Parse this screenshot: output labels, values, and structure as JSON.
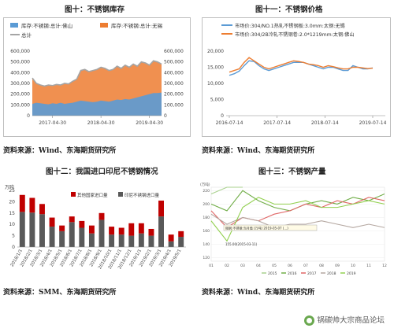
{
  "titles": {
    "inventory": "图十：不锈钢库存",
    "price": "图十一：不锈钢价格",
    "imports": "图十二：我国进口印尼不锈钢情况",
    "output": "图十三：不锈钢产量"
  },
  "sources": {
    "inventory": "资料来源：Wind、东海期货研究所",
    "price": "资料来源：Wind、东海期货研究所",
    "imports": "资料来源：SMM、东海期货研究所",
    "output": "资料来源：Wind、东海期货研究所"
  },
  "watermark": "锅碳帅大宗商品论坛",
  "colors": {
    "foshan": "#5b9bd5",
    "wuxi": "#ed7d31",
    "total": "#a5a5a5",
    "price_304_hot": "#5b9bd5",
    "price_304_cold": "#ed7d31",
    "other_imports": "#c00000",
    "indonesia_imports": "#595959",
    "y2015": "#a9d18e",
    "y2016": "#70ad47",
    "y2017": "#e06666",
    "y2018": "#b4a7a0",
    "y2019": "#92d050"
  },
  "chart_data": [
    {
      "id": "inventory",
      "type": "area",
      "legend": [
        "库存:不锈钢:总计:佛山",
        "库存:不锈钢:总计:无锡",
        "总计"
      ],
      "x_ticks": [
        "2017-04-30",
        "2018-04-30",
        "2019-04-30"
      ],
      "y_ticks": [
        "0",
        "100,000",
        "200,000",
        "300,000",
        "400,000",
        "500,000",
        "600,000"
      ],
      "ylim": [
        0,
        600000
      ],
      "x_range": [
        "2016-09",
        "2019-06"
      ],
      "total": [
        350000,
        300000,
        285000,
        275000,
        285000,
        280000,
        290000,
        285000,
        300000,
        295000,
        320000,
        340000,
        420000,
        430000,
        410000,
        420000,
        430000,
        450000,
        440000,
        420000,
        430000,
        460000,
        440000,
        470000,
        450000,
        480000,
        460000,
        500000,
        490000,
        470000,
        510000,
        500000,
        480000
      ],
      "foshan": [
        110000,
        120000,
        115000,
        110000,
        105000,
        115000,
        110000,
        120000,
        110000,
        115000,
        120000,
        130000,
        140000,
        135000,
        130000,
        125000,
        130000,
        140000,
        135000,
        130000,
        140000,
        150000,
        145000,
        155000,
        150000,
        160000,
        170000,
        180000,
        190000,
        200000,
        210000,
        210000,
        215000
      ]
    },
    {
      "id": "price",
      "type": "line",
      "legend": [
        "市场价:304/NO.1热轧不锈钢板:3.0mm:太钢:无锡",
        "市场价:304/2B冷轧不锈钢卷:2.0*1219mm:太钢:佛山"
      ],
      "x_ticks": [
        "2016-07-14",
        "2017-07-14",
        "2018-07-14",
        "2019-07-14"
      ],
      "y_ticks": [
        "0",
        "5,000",
        "10,000",
        "15,000",
        "20,000"
      ],
      "ylim": [
        0,
        20000
      ],
      "series": [
        {
          "name": "市场价:304/NO.1热轧不锈钢板:3.0mm:太钢:无锡",
          "values": [
            12500,
            13000,
            13800,
            15500,
            17000,
            16800,
            15500,
            14500,
            14000,
            14500,
            15000,
            15500,
            16000,
            16500,
            16500,
            16500,
            16000,
            15500,
            15000,
            14500,
            15000,
            15000,
            14500,
            14000,
            14000,
            15500,
            15000,
            14500,
            14500,
            14800
          ]
        },
        {
          "name": "市场价:304/2B冷轧不锈钢卷:2.0*1219mm:太钢:佛山",
          "values": [
            13500,
            14000,
            14500,
            16500,
            18000,
            17000,
            16000,
            15000,
            14500,
            15000,
            15500,
            16000,
            16500,
            17000,
            16800,
            16500,
            16000,
            15800,
            15500,
            15000,
            15500,
            15200,
            14800,
            14500,
            14500,
            15000,
            15000,
            14800,
            14600,
            14700
          ]
        }
      ]
    },
    {
      "id": "imports",
      "type": "bar",
      "y_unit": "万吨",
      "legend": [
        "其他国家进口量",
        "印尼不锈钢进口量"
      ],
      "categories": [
        "2018/1/1",
        "2018/2/1",
        "2018/3/1",
        "2018/4/1",
        "2018/5/1",
        "2018/6/1",
        "2018/7/1",
        "2018/8/1",
        "2018/9/1",
        "2018/10/1",
        "2018/11/1",
        "2018/12/1",
        "2019/1/1",
        "2019/2/1",
        "2019/3/1",
        "2019/4/1",
        "2019/5/1"
      ],
      "x_tick_labels": [
        "2018/1/1",
        "2018/2/1",
        "2018/3/1",
        "2018/4/1",
        "2018/5/1",
        "2018/6/1",
        "2018/7/1",
        "2018/8/1",
        "2018/9/1",
        "2018/10/1",
        "2018/11/1",
        "2018/12/1",
        "2019/1/1",
        "2019/2/1",
        "2019/3/1",
        "2019/4/1",
        "2019/5/1"
      ],
      "y_ticks": [
        "0",
        "5",
        "10",
        "15",
        "20",
        "25"
      ],
      "ylim": [
        0,
        25
      ],
      "series": [
        {
          "name": "印尼不锈钢进口量",
          "values": [
            15.5,
            15.2,
            14.5,
            9.0,
            7.0,
            11.0,
            8.5,
            6.0,
            12.0,
            5.5,
            5.5,
            5.0,
            6.0,
            5.0,
            13.5,
            2.5,
            4.5
          ]
        },
        {
          "name": "其他国家进口量",
          "values": [
            7.5,
            6.5,
            4.5,
            4.0,
            2.5,
            2.5,
            3.0,
            3.5,
            3.0,
            3.5,
            3.0,
            5.5,
            4.5,
            3.0,
            7.0,
            3.0,
            2.5
          ]
        }
      ]
    },
    {
      "id": "output",
      "type": "line",
      "y_unit": "(万吨)",
      "x_ticks": [
        "01",
        "02",
        "03",
        "04",
        "05",
        "06",
        "07",
        "08",
        "09",
        "10",
        "11",
        "12"
      ],
      "y_ticks": [
        "120",
        "140",
        "160",
        "180",
        "200",
        "220"
      ],
      "ylim": [
        115,
        225
      ],
      "legend": [
        "2015",
        "2016",
        "2017",
        "2018",
        "2019"
      ],
      "annotations": [
        "粗钢:不锈钢:当月值 (万吨) 2019-05-07 (...)",
        "155.00(2015-03-11)"
      ],
      "series": [
        {
          "name": "2015",
          "values": [
            215,
            225,
            225,
            null,
            null,
            null,
            null,
            null,
            null,
            null,
            null,
            null
          ]
        },
        {
          "name": "2016",
          "values": [
            200,
            190,
            220,
            205,
            195,
            190,
            200,
            205,
            200,
            210,
            205,
            215
          ]
        },
        {
          "name": "2017",
          "values": [
            190,
            165,
            180,
            175,
            185,
            190,
            200,
            195,
            205,
            200,
            210,
            205
          ]
        },
        {
          "name": "2018",
          "values": [
            185,
            170,
            180,
            175,
            165,
            170,
            170,
            175,
            170,
            165,
            170,
            165
          ]
        },
        {
          "name": "2019",
          "values": [
            175,
            145,
            195,
            210,
            200,
            200,
            205,
            195,
            195,
            200,
            205,
            200
          ]
        }
      ]
    }
  ]
}
